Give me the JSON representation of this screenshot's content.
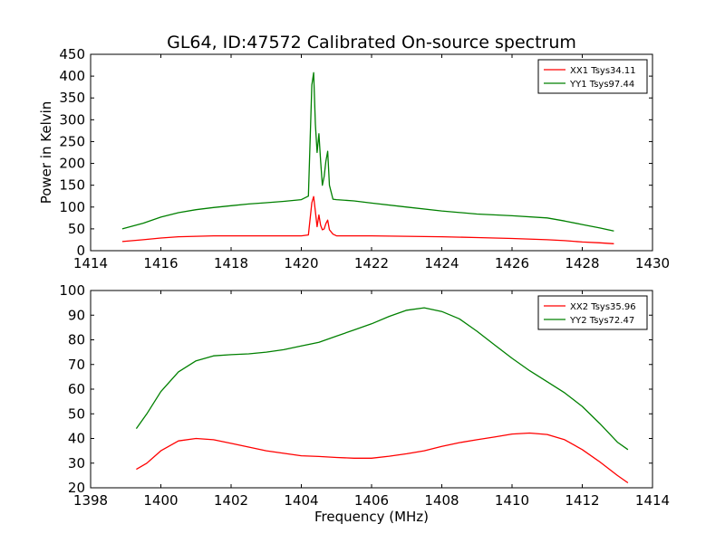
{
  "title": "GL64, ID:47572 Calibrated On-source spectrum",
  "chart_data": [
    {
      "type": "line",
      "title": "GL64, ID:47572 Calibrated On-source spectrum",
      "xlabel": "",
      "ylabel": "Power in Kelvin",
      "xlim": [
        1414,
        1430
      ],
      "ylim": [
        0,
        450
      ],
      "xticks": [
        1414,
        1416,
        1418,
        1420,
        1422,
        1424,
        1426,
        1428,
        1430
      ],
      "yticks": [
        0,
        50,
        100,
        150,
        200,
        250,
        300,
        350,
        400,
        450
      ],
      "grid": false,
      "legend_position": "top-right",
      "series": [
        {
          "name": "XX1 Tsys34.11",
          "color": "#ff0000",
          "x": [
            1414.9,
            1415.5,
            1416.0,
            1416.5,
            1417.0,
            1417.5,
            1418.0,
            1418.5,
            1419.0,
            1419.5,
            1420.0,
            1420.2,
            1420.3,
            1420.35,
            1420.4,
            1420.45,
            1420.5,
            1420.55,
            1420.6,
            1420.65,
            1420.7,
            1420.75,
            1420.8,
            1420.9,
            1421.0,
            1421.5,
            1422.0,
            1423.0,
            1424.0,
            1425.0,
            1426.0,
            1427.0,
            1427.5,
            1428.0,
            1428.5,
            1428.9
          ],
          "y": [
            21,
            25,
            29,
            32,
            33,
            34,
            34,
            34,
            34,
            34,
            34,
            36,
            110,
            124,
            90,
            55,
            82,
            58,
            48,
            50,
            62,
            70,
            48,
            38,
            34,
            34,
            34,
            33,
            32,
            30,
            28,
            25,
            23,
            20,
            18,
            16
          ]
        },
        {
          "name": "YY1 Tsys97.44",
          "color": "#008000",
          "x": [
            1414.9,
            1415.5,
            1416.0,
            1416.5,
            1417.0,
            1417.5,
            1418.0,
            1418.5,
            1419.0,
            1419.5,
            1420.0,
            1420.2,
            1420.3,
            1420.35,
            1420.4,
            1420.45,
            1420.5,
            1420.55,
            1420.6,
            1420.65,
            1420.7,
            1420.75,
            1420.8,
            1420.9,
            1421.0,
            1421.5,
            1422.0,
            1423.0,
            1424.0,
            1425.0,
            1426.0,
            1427.0,
            1427.5,
            1428.0,
            1428.5,
            1428.9
          ],
          "y": [
            50,
            63,
            77,
            87,
            94,
            99,
            103,
            107,
            110,
            113,
            117,
            125,
            380,
            408,
            290,
            225,
            268,
            205,
            150,
            170,
            205,
            228,
            150,
            118,
            117,
            114,
            109,
            100,
            91,
            84,
            80,
            75,
            68,
            60,
            52,
            45
          ]
        }
      ]
    },
    {
      "type": "line",
      "title": "",
      "xlabel": "Frequency (MHz)",
      "ylabel": "",
      "xlim": [
        1398,
        1414
      ],
      "ylim": [
        20,
        100
      ],
      "xticks": [
        1398,
        1400,
        1402,
        1404,
        1406,
        1408,
        1410,
        1412,
        1414
      ],
      "yticks": [
        20,
        30,
        40,
        50,
        60,
        70,
        80,
        90,
        100
      ],
      "grid": false,
      "legend_position": "top-right",
      "series": [
        {
          "name": "XX2 Tsys35.96",
          "color": "#ff0000",
          "x": [
            1399.3,
            1399.6,
            1400.0,
            1400.5,
            1401.0,
            1401.5,
            1402.0,
            1402.5,
            1403.0,
            1403.5,
            1404.0,
            1404.5,
            1405.0,
            1405.5,
            1406.0,
            1406.5,
            1407.0,
            1407.5,
            1408.0,
            1408.5,
            1409.0,
            1409.5,
            1410.0,
            1410.5,
            1411.0,
            1411.5,
            1412.0,
            1412.5,
            1413.0,
            1413.3
          ],
          "y": [
            27.5,
            30,
            35,
            39,
            40,
            39.5,
            38,
            36.5,
            35,
            34,
            33,
            32.7,
            32.3,
            32,
            32,
            32.8,
            33.8,
            35,
            36.8,
            38.3,
            39.5,
            40.6,
            41.8,
            42.2,
            41.6,
            39.5,
            35.5,
            30.5,
            25,
            22
          ]
        },
        {
          "name": "YY2 Tsys72.47",
          "color": "#008000",
          "x": [
            1399.3,
            1399.6,
            1400.0,
            1400.5,
            1401.0,
            1401.5,
            1402.0,
            1402.5,
            1403.0,
            1403.5,
            1404.0,
            1404.5,
            1405.0,
            1405.5,
            1406.0,
            1406.5,
            1407.0,
            1407.5,
            1408.0,
            1408.5,
            1409.0,
            1409.5,
            1410.0,
            1410.5,
            1411.0,
            1411.5,
            1412.0,
            1412.5,
            1413.0,
            1413.3
          ],
          "y": [
            44,
            50,
            59,
            67,
            71.5,
            73.5,
            74,
            74.3,
            75,
            76,
            77.5,
            79,
            81.5,
            84,
            86.5,
            89.5,
            92,
            93,
            91.5,
            88.5,
            83.5,
            78,
            72.5,
            67.5,
            63,
            58.5,
            53,
            46,
            38.5,
            35.5
          ]
        }
      ]
    }
  ]
}
